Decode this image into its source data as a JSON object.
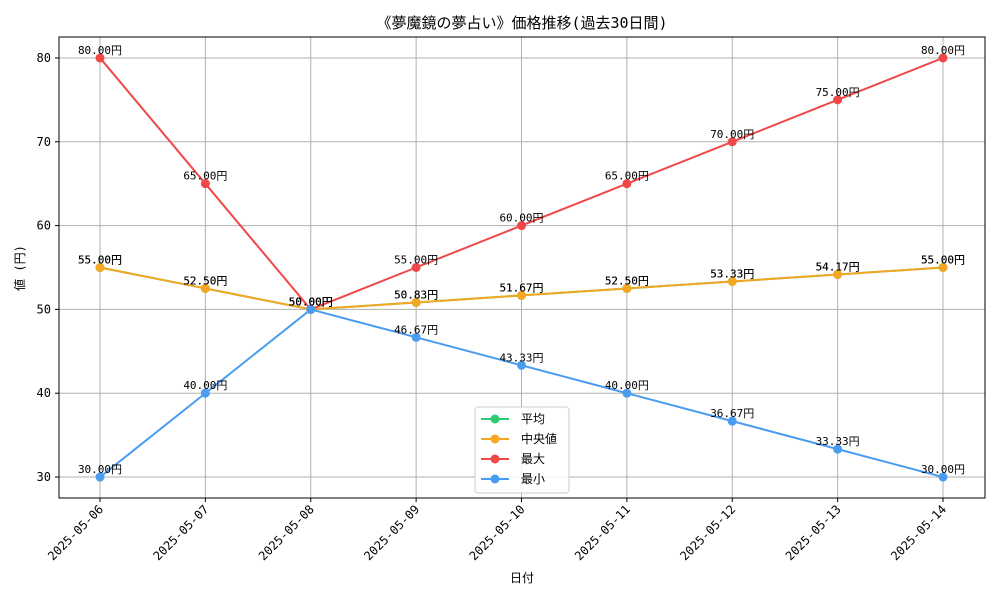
{
  "chart_data": {
    "type": "line",
    "title": "《夢魔鏡の夢占い》価格推移(過去30日間)",
    "xlabel": "日付",
    "ylabel": "値 (円)",
    "categories": [
      "2025-05-06",
      "2025-05-07",
      "2025-05-08",
      "2025-05-09",
      "2025-05-10",
      "2025-05-11",
      "2025-05-12",
      "2025-05-13",
      "2025-05-14"
    ],
    "yticks": [
      30,
      40,
      50,
      60,
      70,
      80
    ],
    "ylim": [
      27.5,
      82.5
    ],
    "grid": true,
    "legend_position": "bottom-center",
    "label_suffix": "円",
    "series": [
      {
        "name": "平均",
        "color": "#2ecc71",
        "values": [
          55.0,
          52.5,
          50.0,
          50.83,
          51.67,
          52.5,
          53.33,
          54.17,
          55.0
        ]
      },
      {
        "name": "中央値",
        "color": "#f5a623",
        "values": [
          55.0,
          52.5,
          50.0,
          50.83,
          51.67,
          52.5,
          53.33,
          54.17,
          55.0
        ]
      },
      {
        "name": "最大",
        "color": "#f04848",
        "values": [
          80.0,
          65.0,
          50.0,
          55.0,
          60.0,
          65.0,
          70.0,
          75.0,
          80.0
        ]
      },
      {
        "name": "最小",
        "color": "#4a9cf0",
        "values": [
          30.0,
          40.0,
          50.0,
          46.67,
          43.33,
          40.0,
          36.67,
          33.33,
          30.0
        ]
      }
    ]
  }
}
